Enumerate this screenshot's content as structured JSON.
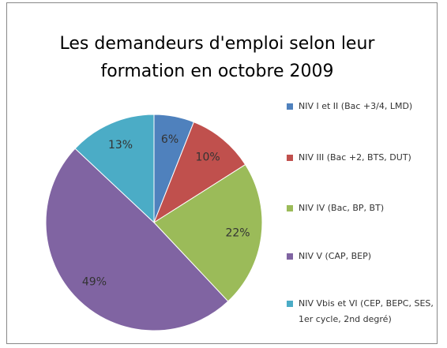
{
  "chart_data": {
    "type": "pie",
    "title": "Les demandeurs d'emploi selon leur formation en octobre 2009",
    "categories": [
      "NIV I et II (Bac +3/4, LMD)",
      "NIV III (Bac +2, BTS, DUT)",
      "NIV IV (Bac, BP, BT)",
      "NIV V (CAP, BEP)",
      "NIV Vbis et VI (CEP, BEPC, SES, 1er cycle, 2nd degré)"
    ],
    "values": [
      6,
      10,
      22,
      49,
      13
    ],
    "value_labels": [
      "6%",
      "10%",
      "22%",
      "49%",
      "13%"
    ],
    "colors": [
      "#4f81bd",
      "#c0504d",
      "#9bbb59",
      "#8064a2",
      "#4bacc6"
    ],
    "legend": "right"
  }
}
